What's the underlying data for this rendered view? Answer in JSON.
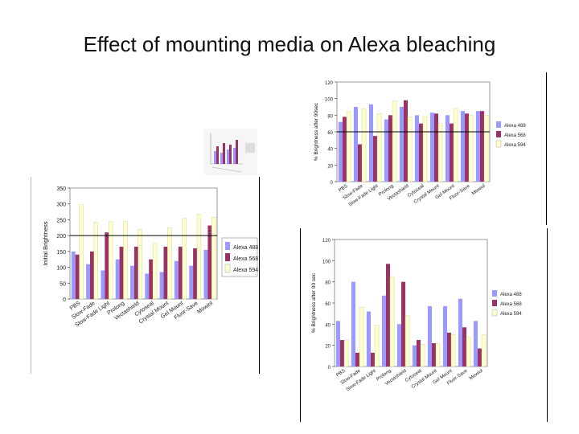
{
  "title": "Effect of mounting media on Alexa bleaching",
  "colors": {
    "s488": "#9999ff",
    "s568": "#993366",
    "s594": "#ffffcc"
  },
  "chart_data": [
    {
      "id": "initial",
      "type": "bar",
      "ylabel": "Initial Brightness",
      "ylim": [
        0,
        350
      ],
      "yticks": [
        0,
        50,
        100,
        150,
        200,
        250,
        300,
        350
      ],
      "hline": 200,
      "legend_position": "right",
      "categories": [
        "PBS",
        "Slow-Fade",
        "Slow-Fade Light",
        "Prolong",
        "Vectashield",
        "Cytoseal",
        "Crystal Mount",
        "Gel Mount",
        "Fluor-Save",
        "Mowiol"
      ],
      "series": [
        {
          "name": "Alexa 488",
          "values": [
            150,
            110,
            90,
            125,
            105,
            80,
            85,
            120,
            105,
            155
          ]
        },
        {
          "name": "Alexa 568",
          "values": [
            140,
            150,
            210,
            165,
            165,
            125,
            165,
            165,
            160,
            232
          ]
        },
        {
          "name": "Alexa 594",
          "values": [
            298,
            243,
            245,
            245,
            220,
            177,
            225,
            255,
            268,
            258
          ]
        }
      ]
    },
    {
      "id": "after90-top",
      "type": "bar",
      "ylabel": "% Brightness after 90sec",
      "ylim": [
        0,
        120
      ],
      "yticks": [
        0,
        20,
        40,
        60,
        80,
        100,
        120
      ],
      "hline": 60,
      "legend_position": "right",
      "categories": [
        "PBS",
        "Slow-Fade",
        "Slow-Fade Light",
        "Prolong",
        "Vectashield",
        "Cytoseal",
        "Crystal Mount",
        "Gel Mount",
        "Fluor-Save",
        "Mowiol"
      ],
      "series": [
        {
          "name": "Alexa 488",
          "values": [
            72,
            90,
            93,
            75,
            90,
            80,
            83,
            80,
            85,
            85
          ]
        },
        {
          "name": "Alexa 568",
          "values": [
            78,
            45,
            55,
            80,
            98,
            70,
            82,
            70,
            82,
            85
          ]
        },
        {
          "name": "Alexa 594",
          "values": [
            85,
            88,
            82,
            97,
            78,
            78,
            70,
            88,
            80,
            80
          ]
        }
      ]
    },
    {
      "id": "after90-bottom",
      "type": "bar",
      "ylabel": "% Brightness after 90 sec",
      "ylim": [
        0,
        120
      ],
      "yticks": [
        0,
        20,
        40,
        60,
        80,
        100,
        120
      ],
      "legend_position": "right",
      "categories": [
        "PBS",
        "Slow-Fade",
        "Slow-Fade Light",
        "Prolong",
        "Vectashield",
        "Cytoseal",
        "Crystal Mount",
        "Gel Mount",
        "Fluor-Save",
        "Mowiol"
      ],
      "series": [
        {
          "name": "Alexa 488",
          "values": [
            43,
            80,
            52,
            67,
            40,
            20,
            57,
            57,
            64,
            43
          ]
        },
        {
          "name": "Alexa 568",
          "values": [
            25,
            13,
            13,
            97,
            80,
            25,
            22,
            32,
            37,
            17
          ]
        },
        {
          "name": "Alexa 594",
          "values": [
            25,
            56,
            39,
            85,
            48,
            21,
            22,
            30,
            28,
            30
          ]
        }
      ]
    }
  ]
}
